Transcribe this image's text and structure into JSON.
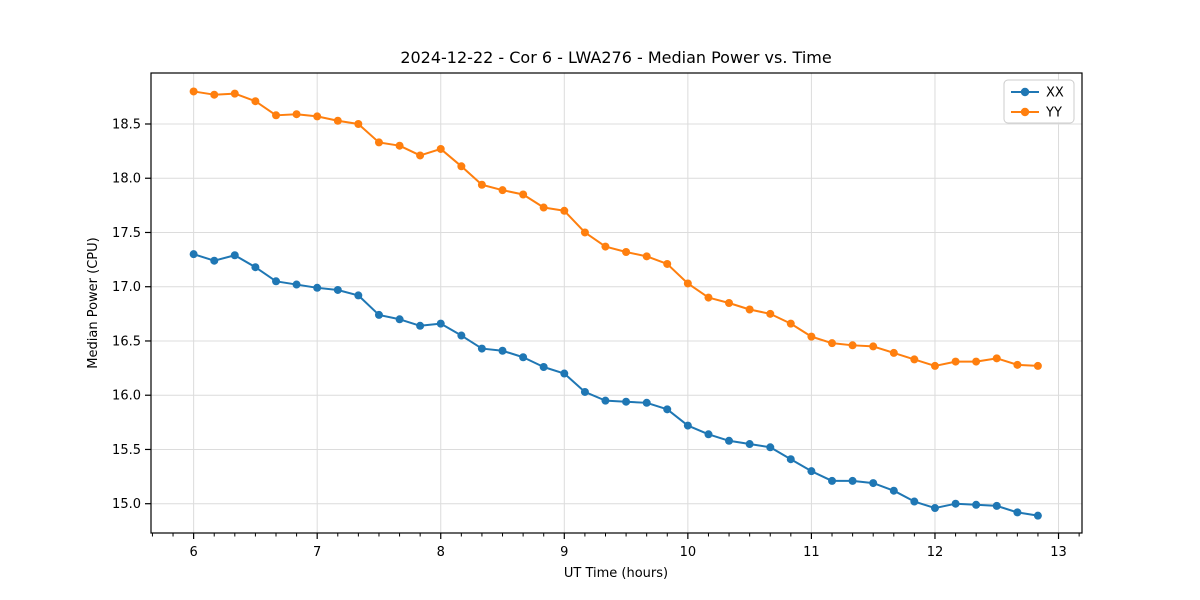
{
  "chart_data": {
    "type": "line",
    "title": "2024-12-22 - Cor 6 - LWA276 - Median Power vs. Time",
    "xlabel": "UT Time (hours)",
    "ylabel": "Median Power (CPU)",
    "xlim": [
      5.655,
      13.19
    ],
    "ylim": [
      14.73,
      18.97
    ],
    "grid": true,
    "legend_position": "upper right",
    "xticks": {
      "values": [
        6,
        7,
        8,
        9,
        10,
        11,
        12,
        13
      ],
      "labels": [
        "6",
        "7",
        "8",
        "9",
        "10",
        "11",
        "12",
        "13"
      ]
    },
    "x_minor_tick_step": 0.16667,
    "yticks": {
      "values": [
        15.0,
        15.5,
        16.0,
        16.5,
        17.0,
        17.5,
        18.0,
        18.5
      ],
      "labels": [
        "15.0",
        "15.5",
        "16.0",
        "16.5",
        "17.0",
        "17.5",
        "18.0",
        "18.5"
      ]
    },
    "x": [
      6.0,
      6.167,
      6.333,
      6.5,
      6.667,
      6.833,
      7.0,
      7.167,
      7.333,
      7.5,
      7.667,
      7.833,
      8.0,
      8.167,
      8.333,
      8.5,
      8.667,
      8.833,
      9.0,
      9.167,
      9.333,
      9.5,
      9.667,
      9.833,
      10.0,
      10.167,
      10.333,
      10.5,
      10.667,
      10.833,
      11.0,
      11.167,
      11.333,
      11.5,
      11.667,
      11.833,
      12.0,
      12.167,
      12.333,
      12.5,
      12.667,
      12.833
    ],
    "series": [
      {
        "name": "XX",
        "color": "#1f77b4",
        "values": [
          17.3,
          17.24,
          17.29,
          17.18,
          17.05,
          17.02,
          16.99,
          16.97,
          16.92,
          16.74,
          16.7,
          16.64,
          16.66,
          16.55,
          16.43,
          16.41,
          16.35,
          16.26,
          16.2,
          16.03,
          15.95,
          15.94,
          15.93,
          15.87,
          15.72,
          15.64,
          15.58,
          15.55,
          15.52,
          15.41,
          15.3,
          15.21,
          15.21,
          15.19,
          15.12,
          15.02,
          14.96,
          15.0,
          14.99,
          14.98,
          14.92,
          14.89
        ]
      },
      {
        "name": "YY",
        "color": "#ff7f0e",
        "values": [
          18.8,
          18.77,
          18.78,
          18.71,
          18.58,
          18.59,
          18.57,
          18.53,
          18.5,
          18.33,
          18.3,
          18.21,
          18.27,
          18.11,
          17.94,
          17.89,
          17.85,
          17.73,
          17.7,
          17.5,
          17.37,
          17.32,
          17.28,
          17.21,
          17.03,
          16.9,
          16.85,
          16.79,
          16.75,
          16.66,
          16.54,
          16.48,
          16.46,
          16.45,
          16.39,
          16.33,
          16.27,
          16.31,
          16.31,
          16.34,
          16.28,
          16.27
        ]
      }
    ],
    "style": {
      "grid_color": "#dcdcdc",
      "frame_color": "#000000",
      "background": "#ffffff",
      "marker_radius": 4,
      "line_width": 2
    }
  }
}
